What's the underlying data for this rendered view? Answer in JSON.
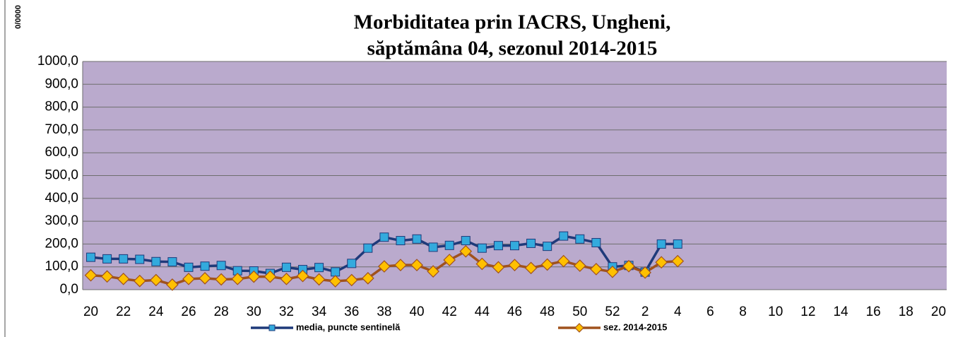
{
  "chart_data": {
    "type": "line",
    "title": [
      "Morbiditatea prin IACRS, Ungheni,",
      "săptămâna 04, sezonul  2014-2015"
    ],
    "y_label": "0/0000",
    "categories": [
      "20",
      null,
      "22",
      null,
      "24",
      null,
      "26",
      null,
      "28",
      null,
      "30",
      null,
      "32",
      null,
      "34",
      null,
      "36",
      null,
      "38",
      null,
      "40",
      null,
      "42",
      null,
      "44",
      null,
      "46",
      null,
      "48",
      null,
      "50",
      null,
      "52",
      null,
      "2",
      null,
      "4",
      null,
      "6",
      null,
      "8",
      null,
      "10",
      null,
      "12",
      null,
      "14",
      null,
      "16",
      null,
      "18",
      null,
      "20"
    ],
    "series": [
      {
        "name": "media, puncte sentinelă",
        "color": "#1f3a7a",
        "marker_color": "#33aadd",
        "marker": "square",
        "values": [
          142,
          135,
          135,
          133,
          123,
          122,
          98,
          103,
          106,
          83,
          82,
          71,
          98,
          88,
          97,
          78,
          115,
          182,
          230,
          215,
          222,
          186,
          194,
          215,
          182,
          193,
          193,
          203,
          190,
          235,
          222,
          206,
          100,
          106,
          77,
          200,
          200,
          null,
          null,
          null,
          null,
          null,
          null,
          null,
          null,
          null,
          null,
          null,
          null,
          null,
          null,
          null,
          null
        ]
      },
      {
        "name": "sez. 2014-2015",
        "color": "#a0521d",
        "marker_color": "#ffc000",
        "marker": "diamond",
        "values": [
          63,
          58,
          47,
          38,
          42,
          22,
          47,
          50,
          45,
          47,
          57,
          57,
          47,
          60,
          45,
          37,
          42,
          50,
          102,
          108,
          108,
          80,
          130,
          168,
          113,
          98,
          108,
          95,
          110,
          125,
          105,
          90,
          78,
          103,
          75,
          120,
          125,
          null,
          null,
          null,
          null,
          null,
          null,
          null,
          null,
          null,
          null,
          null,
          null,
          null,
          null,
          null,
          null
        ]
      }
    ],
    "ylim": [
      0,
      1000
    ],
    "yticks": [
      {
        "value": 0,
        "label": "0,0"
      },
      {
        "value": 100,
        "label": "100,0"
      },
      {
        "value": 200,
        "label": "200,0"
      },
      {
        "value": 300,
        "label": "300,0"
      },
      {
        "value": 400,
        "label": "400,0"
      },
      {
        "value": 500,
        "label": "500,0"
      },
      {
        "value": 600,
        "label": "600,0"
      },
      {
        "value": 700,
        "label": "700,0"
      },
      {
        "value": 800,
        "label": "800,0"
      },
      {
        "value": 900,
        "label": "900,0"
      },
      {
        "value": 1000,
        "label": "1000,0"
      }
    ],
    "grid": true,
    "plot_background": "#baaacd",
    "legend": "bottom"
  }
}
